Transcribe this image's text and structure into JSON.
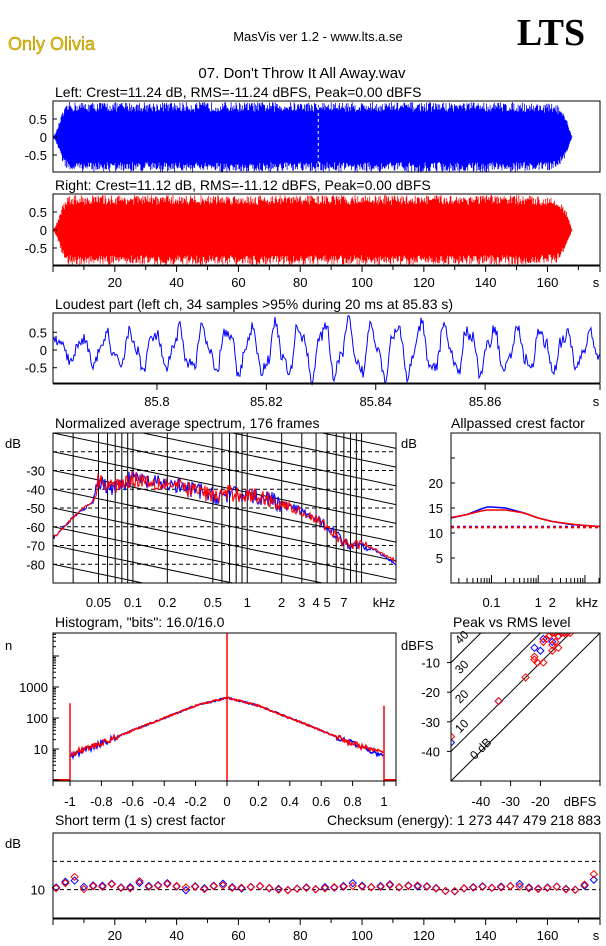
{
  "header": {
    "artist": "Only Olivia",
    "app_title": "MasVis ver 1.2 - www.lts.a.se",
    "logo": "LTS",
    "file_title": "07. Don't Throw It All Away.wav"
  },
  "colors": {
    "left": "#0000ff",
    "right": "#ff0000",
    "artist_text": "#f0c800",
    "frame": "#000000"
  },
  "chart_data": [
    {
      "id": "left_waveform",
      "type": "area",
      "title": "Left: Crest=11.24 dB, RMS=-11.24 dBFS, Peak=0.00 dBFS",
      "y_ticks": [
        "0.5",
        "0",
        "-0.5"
      ],
      "y_tick_values": [
        0.5,
        0,
        -0.5
      ],
      "ylim": [
        -1,
        1
      ],
      "xlim": [
        0,
        177
      ],
      "series": [
        {
          "name": "left",
          "color": "#0000ff",
          "envelope_time_s": [
            0,
            1,
            3,
            5,
            150,
            163,
            166,
            168,
            177
          ],
          "envelope_amp": [
            0,
            0.15,
            0.7,
            1,
            1,
            0.95,
            0.55,
            0,
            0
          ]
        }
      ],
      "marker_time_s": 85.83
    },
    {
      "id": "right_waveform",
      "type": "area",
      "title": "Right: Crest=11.12 dB, RMS=-11.12 dBFS, Peak=0.00 dBFS",
      "y_ticks": [
        "0.5",
        "0",
        "-0.5"
      ],
      "y_tick_values": [
        0.5,
        0,
        -0.5
      ],
      "ylim": [
        -1,
        1
      ],
      "x_ticks": [
        "20",
        "40",
        "60",
        "80",
        "100",
        "120",
        "140",
        "160"
      ],
      "x_tick_values": [
        20,
        40,
        60,
        80,
        100,
        120,
        140,
        160
      ],
      "x_unit": "s",
      "xlim": [
        0,
        177
      ],
      "series": [
        {
          "name": "right",
          "color": "#ff0000",
          "envelope_time_s": [
            0,
            1,
            3,
            5,
            150,
            163,
            166,
            168,
            177
          ],
          "envelope_amp": [
            0,
            0.15,
            0.7,
            1,
            1,
            0.95,
            0.55,
            0,
            0
          ]
        }
      ]
    },
    {
      "id": "loudest_part",
      "type": "line",
      "title": "Loudest part (left  ch, 34 samples >95% during 20 ms at 85.83 s)",
      "y_ticks": [
        "0.5",
        "0",
        "-0.5"
      ],
      "y_tick_values": [
        0.5,
        0,
        -0.5
      ],
      "ylim": [
        -1,
        1
      ],
      "x_ticks": [
        "85.8",
        "85.82",
        "85.84",
        "85.86"
      ],
      "x_tick_values": [
        85.8,
        85.82,
        85.84,
        85.86
      ],
      "x_unit": "s",
      "xlim": [
        85.781,
        85.881
      ],
      "series": [
        {
          "name": "left",
          "color": "#0000ff"
        }
      ]
    },
    {
      "id": "spectrum",
      "type": "line",
      "title": "Normalized average spectrum, 176 frames",
      "ylabel": "dB",
      "y_ticks": [
        "-30",
        "-40",
        "-50",
        "-60",
        "-70",
        "-80"
      ],
      "y_tick_values": [
        -30,
        -40,
        -50,
        -60,
        -70,
        -80
      ],
      "ylim": [
        -90,
        -10
      ],
      "x_ticks": [
        "0.05",
        "0.1",
        "0.2",
        "0.5",
        "1",
        "2",
        "3",
        "4",
        "5",
        "7"
      ],
      "x_tick_values": [
        0.05,
        0.1,
        0.2,
        0.5,
        1,
        2,
        3,
        4,
        5,
        7
      ],
      "x_unit": "kHz",
      "xlim": [
        0.02,
        20
      ],
      "x_scale": "log",
      "grid": true,
      "series": [
        {
          "name": "left",
          "color": "#0000ff",
          "freq_khz": [
            0.02,
            0.025,
            0.03,
            0.035,
            0.04,
            0.045,
            0.05,
            0.06,
            0.07,
            0.1,
            0.15,
            0.2,
            0.3,
            0.4,
            0.5,
            0.7,
            1,
            1.5,
            2,
            3,
            4,
            5,
            6,
            7,
            8,
            10,
            12,
            15,
            20
          ],
          "db": [
            -66,
            -60,
            -55,
            -52,
            -49,
            -47,
            -36,
            -38,
            -39,
            -34,
            -37,
            -37,
            -40,
            -41,
            -44,
            -43,
            -43,
            -45,
            -48,
            -52,
            -56,
            -60,
            -64,
            -68,
            -70,
            -69,
            -71,
            -75,
            -80
          ]
        },
        {
          "name": "right",
          "color": "#ff0000",
          "freq_khz": [
            0.02,
            0.025,
            0.03,
            0.035,
            0.04,
            0.045,
            0.05,
            0.06,
            0.07,
            0.1,
            0.15,
            0.2,
            0.3,
            0.4,
            0.5,
            0.7,
            1,
            1.5,
            2,
            3,
            4,
            5,
            6,
            7,
            8,
            10,
            12,
            15,
            20
          ],
          "db": [
            -66,
            -60,
            -55,
            -51,
            -49,
            -46,
            -35,
            -38,
            -38,
            -34,
            -36,
            -37,
            -40,
            -41,
            -44,
            -42,
            -43,
            -45,
            -48,
            -52,
            -56,
            -60,
            -65,
            -69,
            -70,
            -69,
            -71,
            -74,
            -78
          ]
        }
      ]
    },
    {
      "id": "allpassed_crest",
      "type": "line",
      "title": "Allpassed crest factor",
      "ylabel": "dB",
      "y_ticks": [
        "20",
        "15",
        "10",
        "5"
      ],
      "y_tick_values": [
        20,
        15,
        10,
        5
      ],
      "ylim": [
        0,
        30
      ],
      "x_ticks": [
        "0.1",
        "1",
        "2"
      ],
      "x_tick_values": [
        0.1,
        1,
        2
      ],
      "x_unit": "kHz",
      "xlim": [
        0.0136,
        21
      ],
      "x_scale": "log",
      "series": [
        {
          "name": "left",
          "color": "#0000ff",
          "freq_khz": [
            0.0136,
            0.03,
            0.06,
            0.08,
            0.1,
            0.2,
            0.5,
            1,
            2,
            5,
            10,
            21
          ],
          "db": [
            13,
            13.7,
            14.8,
            15.2,
            15.2,
            15,
            14,
            13,
            12.3,
            11.7,
            11.5,
            11.3
          ],
          "reference_crest_db": 11.24
        },
        {
          "name": "right",
          "color": "#ff0000",
          "freq_khz": [
            0.0136,
            0.03,
            0.06,
            0.08,
            0.1,
            0.2,
            0.5,
            1,
            2,
            5,
            10,
            21
          ],
          "db": [
            13.1,
            13.7,
            14.4,
            14.6,
            14.6,
            14.6,
            14,
            13,
            12.3,
            11.8,
            11.5,
            11.3
          ],
          "reference_crest_db": 11.12
        }
      ]
    },
    {
      "id": "histogram",
      "type": "line",
      "title": "Histogram, \"bits\": 16.0/16.0",
      "ylabel": "n",
      "y_ticks": [
        "1000",
        "100",
        "10"
      ],
      "y_tick_values": [
        1000,
        100,
        10
      ],
      "y_scale": "log",
      "ylim": [
        0.93,
        55000
      ],
      "x_ticks": [
        "-1",
        "-0.8",
        "-0.6",
        "-0.4",
        "-0.2",
        "0",
        "0.2",
        "0.4",
        "0.6",
        "0.8",
        "1"
      ],
      "x_tick_values": [
        -1,
        -0.8,
        -0.6,
        -0.4,
        -0.2,
        0,
        0.2,
        0.4,
        0.6,
        0.8,
        1
      ],
      "xlim": [
        -1.1,
        1.1
      ],
      "series": [
        {
          "name": "left",
          "color": "#0000ff",
          "amplitude": [
            -1,
            -0.8,
            -0.6,
            -0.4,
            -0.2,
            0,
            0.2,
            0.4,
            0.6,
            0.8,
            1
          ],
          "count": [
            6,
            15,
            40,
            100,
            250,
            450,
            250,
            100,
            40,
            15,
            6
          ]
        },
        {
          "name": "right",
          "color": "#ff0000",
          "amplitude": [
            -1,
            -0.8,
            -0.6,
            -0.4,
            -0.2,
            0,
            0.2,
            0.4,
            0.6,
            0.8,
            1
          ],
          "count": [
            7,
            15,
            40,
            100,
            250,
            450,
            250,
            100,
            40,
            15,
            7
          ]
        }
      ],
      "spikes": [
        {
          "amplitude": -1,
          "count": 300
        },
        {
          "amplitude": 0,
          "count": 55000
        },
        {
          "amplitude": 1,
          "count": 250
        }
      ]
    },
    {
      "id": "peak_vs_rms",
      "type": "scatter",
      "title": "Peak vs RMS level",
      "ylabel": "dBFS",
      "xlabel": "dBFS",
      "y_ticks": [
        "-10",
        "-20",
        "-30",
        "-40"
      ],
      "y_tick_values": [
        -10,
        -20,
        -30,
        -40
      ],
      "ylim": [
        -50,
        0
      ],
      "x_ticks": [
        "-40",
        "-30",
        "-20"
      ],
      "x_tick_values": [
        -40,
        -30,
        -20
      ],
      "xlim": [
        -50,
        0
      ],
      "crest_lines": [
        "0 dB",
        "10",
        "20",
        "30",
        "40"
      ],
      "crest_line_values": [
        0,
        10,
        20,
        30,
        40
      ],
      "series": [
        {
          "name": "left",
          "color": "#0000ff",
          "points_rms_peak": [
            [
              -22,
              -5
            ],
            [
              -20,
              -6
            ],
            [
              -19,
              -2
            ],
            [
              -34,
              -23
            ],
            [
              -14,
              -1
            ],
            [
              -12,
              0
            ],
            [
              -16,
              -3
            ],
            [
              -50,
              -37
            ]
          ]
        },
        {
          "name": "right",
          "color": "#ff0000",
          "points_rms_peak": [
            [
              -18,
              -2
            ],
            [
              -17,
              -1
            ],
            [
              -16,
              0
            ],
            [
              -15,
              0
            ],
            [
              -14,
              -1
            ],
            [
              -13,
              0
            ],
            [
              -12,
              0
            ],
            [
              -11,
              0
            ],
            [
              -10,
              0
            ],
            [
              -16,
              -4
            ],
            [
              -15,
              -3
            ],
            [
              -14,
              -5
            ],
            [
              -16,
              -6
            ],
            [
              -22,
              -8
            ],
            [
              -22,
              -9
            ],
            [
              -21,
              -10
            ],
            [
              -19,
              -10
            ],
            [
              -25,
              -15
            ],
            [
              -34,
              -23
            ],
            [
              -19,
              -3
            ],
            [
              -50,
              -35
            ]
          ]
        }
      ]
    },
    {
      "id": "short_term_crest",
      "type": "scatter",
      "title": "Short term (1 s) crest factor",
      "checksum": "Checksum (energy):  1 273 447 479 218 883",
      "ylabel": "dB",
      "y_ticks": [
        "10"
      ],
      "y_tick_values": [
        10
      ],
      "ylim": [
        0,
        30
      ],
      "dashed_lines_db": [
        10,
        20
      ],
      "x_ticks": [
        "20",
        "40",
        "60",
        "80",
        "100",
        "120",
        "140",
        "160"
      ],
      "x_tick_values": [
        20,
        40,
        60,
        80,
        100,
        120,
        140,
        160
      ],
      "x_unit": "s",
      "xlim": [
        0,
        177
      ],
      "time_start_s": 1,
      "time_step_s": 3,
      "series": [
        {
          "name": "left",
          "color": "#0000ff",
          "db": [
            10.8,
            12.8,
            13.2,
            11.0,
            11.5,
            11.4,
            12.1,
            10.8,
            10.9,
            12.4,
            11.3,
            11.6,
            12.3,
            11.1,
            9.8,
            11.2,
            10.5,
            11.4,
            12.1,
            10.9,
            10.4,
            11.0,
            11.2,
            10.5,
            10.3,
            9.9,
            10.4,
            10.8,
            10.2,
            10.9,
            10.7,
            11.3,
            12.3,
            11.4,
            10.9,
            11.3,
            11.9,
            10.8,
            11.5,
            11.1,
            11.2,
            10.6,
            9.5,
            9.4,
            10.4,
            10.9,
            11.2,
            10.7,
            11.1,
            11.3,
            12.0,
            10.8,
            10.4,
            10.8,
            11.1,
            10.3,
            10.0,
            11.4,
            13.5
          ]
        },
        {
          "name": "right",
          "color": "#ff0000",
          "db": [
            10.5,
            12.3,
            14.5,
            10.2,
            11.2,
            11.0,
            11.9,
            10.6,
            10.5,
            13.0,
            11.0,
            11.4,
            12.0,
            11.3,
            10.8,
            11.0,
            10.2,
            11.2,
            11.5,
            10.6,
            10.7,
            10.9,
            11.3,
            10.6,
            10.0,
            9.8,
            10.3,
            10.6,
            10.1,
            10.5,
            10.9,
            11.0,
            11.3,
            11.1,
            10.8,
            11.0,
            11.6,
            10.9,
            11.3,
            11.5,
            11.0,
            10.4,
            9.6,
            9.5,
            10.5,
            10.7,
            11.0,
            10.6,
            10.8,
            11.2,
            11.1,
            10.5,
            10.2,
            10.6,
            11.0,
            10.1,
            9.9,
            11.8,
            15.5
          ]
        }
      ]
    }
  ]
}
